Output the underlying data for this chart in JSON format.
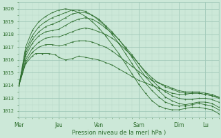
{
  "background_color": "#cce8d8",
  "plot_bg_color": "#cce8d8",
  "grid_color_major": "#a0c8b8",
  "grid_color_minor": "#b8d8c8",
  "line_color": "#2d6e2d",
  "marker_color": "#2d6e2d",
  "ylim": [
    1011.5,
    1020.5
  ],
  "yticks": [
    1012,
    1013,
    1014,
    1015,
    1016,
    1017,
    1018,
    1019,
    1020
  ],
  "xlabel": "Pression niveau de la mer( hPa )",
  "day_labels": [
    "Mer",
    "Jeu",
    "Ven",
    "Sam",
    "Dim",
    "Lu"
  ],
  "day_positions": [
    0,
    48,
    96,
    144,
    192,
    224
  ],
  "xlim": [
    0,
    240
  ],
  "series": [
    {
      "x": [
        0,
        8,
        16,
        20,
        28,
        36,
        44,
        48,
        56,
        64,
        72,
        80,
        88,
        96,
        104,
        112,
        120,
        128,
        136,
        144,
        152,
        160,
        168,
        176,
        184,
        192,
        200,
        208,
        216,
        224,
        232,
        240
      ],
      "y": [
        1014.0,
        1015.7,
        1016.3,
        1016.5,
        1016.5,
        1016.5,
        1016.4,
        1016.2,
        1016.0,
        1016.1,
        1016.3,
        1016.2,
        1016.1,
        1016.0,
        1015.8,
        1015.6,
        1015.3,
        1015.0,
        1014.7,
        1014.4,
        1014.2,
        1014.0,
        1013.8,
        1013.6,
        1013.4,
        1013.3,
        1013.3,
        1013.4,
        1013.4,
        1013.3,
        1013.2,
        1013.1
      ]
    },
    {
      "x": [
        0,
        8,
        16,
        24,
        32,
        40,
        48,
        56,
        64,
        72,
        80,
        88,
        96,
        104,
        112,
        120,
        128,
        136,
        144,
        152,
        160,
        168,
        176,
        184,
        192,
        200,
        208,
        216,
        224,
        232,
        240
      ],
      "y": [
        1014.0,
        1015.8,
        1016.6,
        1017.0,
        1017.2,
        1017.2,
        1017.1,
        1017.2,
        1017.4,
        1017.5,
        1017.5,
        1017.4,
        1017.2,
        1017.0,
        1016.7,
        1016.3,
        1015.9,
        1015.5,
        1015.1,
        1014.7,
        1014.4,
        1014.2,
        1014.0,
        1013.8,
        1013.6,
        1013.5,
        1013.5,
        1013.5,
        1013.4,
        1013.3,
        1013.1
      ]
    },
    {
      "x": [
        0,
        8,
        16,
        24,
        32,
        40,
        48,
        56,
        64,
        72,
        80,
        88,
        96,
        104,
        112,
        120,
        128,
        136,
        144,
        152,
        160,
        168,
        176,
        184,
        192,
        200,
        208,
        216,
        224,
        232,
        240
      ],
      "y": [
        1014.0,
        1016.0,
        1016.9,
        1017.4,
        1017.7,
        1017.8,
        1017.8,
        1018.0,
        1018.2,
        1018.4,
        1018.5,
        1018.4,
        1018.2,
        1018.0,
        1017.7,
        1017.3,
        1016.8,
        1016.3,
        1015.7,
        1015.1,
        1014.6,
        1014.2,
        1013.9,
        1013.7,
        1013.5,
        1013.4,
        1013.4,
        1013.4,
        1013.3,
        1013.2,
        1013.0
      ]
    },
    {
      "x": [
        0,
        8,
        16,
        24,
        32,
        40,
        48,
        56,
        64,
        72,
        80,
        88,
        96,
        104,
        112,
        120,
        128,
        136,
        144,
        152,
        160,
        168,
        176,
        184,
        192,
        200,
        208,
        216,
        224,
        232,
        240
      ],
      "y": [
        1014.0,
        1016.3,
        1017.3,
        1017.9,
        1018.2,
        1018.3,
        1018.4,
        1018.7,
        1019.0,
        1019.2,
        1019.3,
        1019.2,
        1018.9,
        1018.5,
        1018.1,
        1017.6,
        1017.0,
        1016.4,
        1015.7,
        1015.0,
        1014.4,
        1013.9,
        1013.5,
        1013.2,
        1013.0,
        1012.9,
        1012.9,
        1013.0,
        1013.0,
        1012.9,
        1012.7
      ]
    },
    {
      "x": [
        0,
        8,
        16,
        24,
        32,
        40,
        48,
        56,
        64,
        72,
        80,
        88,
        96,
        104,
        112,
        120,
        128,
        136,
        144,
        152,
        160,
        168,
        176,
        184,
        192,
        200,
        208,
        216,
        224,
        232,
        240
      ],
      "y": [
        1014.0,
        1016.5,
        1017.6,
        1018.2,
        1018.6,
        1018.8,
        1019.0,
        1019.3,
        1019.6,
        1019.7,
        1019.7,
        1019.5,
        1019.2,
        1018.7,
        1018.2,
        1017.6,
        1016.9,
        1016.2,
        1015.4,
        1014.7,
        1014.1,
        1013.6,
        1013.1,
        1012.8,
        1012.6,
        1012.5,
        1012.6,
        1012.7,
        1012.7,
        1012.6,
        1012.3
      ]
    },
    {
      "x": [
        0,
        8,
        16,
        24,
        32,
        40,
        48,
        56,
        64,
        72,
        80,
        88,
        96,
        104,
        112,
        120,
        128,
        136,
        144,
        152,
        160,
        168,
        176,
        184,
        192,
        200,
        208,
        216,
        224,
        232,
        240
      ],
      "y": [
        1014.0,
        1016.7,
        1017.9,
        1018.6,
        1019.0,
        1019.3,
        1019.5,
        1019.7,
        1019.9,
        1019.9,
        1019.8,
        1019.5,
        1019.1,
        1018.6,
        1018.0,
        1017.3,
        1016.5,
        1015.7,
        1014.9,
        1014.2,
        1013.6,
        1013.1,
        1012.7,
        1012.5,
        1012.4,
        1012.4,
        1012.5,
        1012.6,
        1012.5,
        1012.4,
        1012.1
      ]
    },
    {
      "x": [
        0,
        8,
        16,
        24,
        32,
        40,
        48,
        56,
        64,
        72,
        80,
        88,
        96,
        104,
        112,
        120,
        128,
        136,
        144,
        152,
        160,
        168,
        176,
        184,
        192,
        200,
        208,
        216,
        224,
        232,
        240
      ],
      "y": [
        1014.0,
        1017.0,
        1018.3,
        1019.0,
        1019.4,
        1019.7,
        1019.9,
        1020.0,
        1019.9,
        1019.7,
        1019.4,
        1019.0,
        1018.5,
        1017.9,
        1017.2,
        1016.5,
        1015.7,
        1014.9,
        1014.1,
        1013.4,
        1012.8,
        1012.4,
        1012.2,
        1012.1,
        1012.1,
        1012.2,
        1012.3,
        1012.3,
        1012.2,
        1012.1,
        1011.8
      ]
    }
  ]
}
